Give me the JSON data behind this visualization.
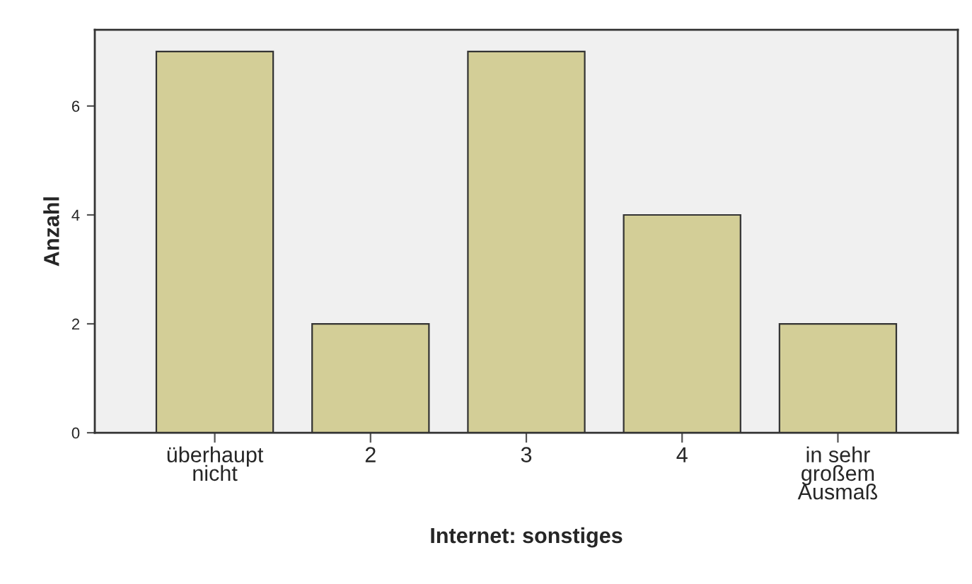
{
  "chart_data": {
    "type": "bar",
    "xlabel": "Internet: sonstiges",
    "ylabel": "Anzahl",
    "categories": [
      "überhaupt\nnicht",
      "2",
      "3",
      "4",
      "in sehr\ngroßem\nAusmaß"
    ],
    "values": [
      7,
      2,
      7,
      4,
      2
    ],
    "color": "#d3ce97",
    "ylim": [
      0,
      7.4
    ],
    "yticks": [
      0,
      2,
      4,
      6
    ],
    "grid": false,
    "legend": false
  }
}
